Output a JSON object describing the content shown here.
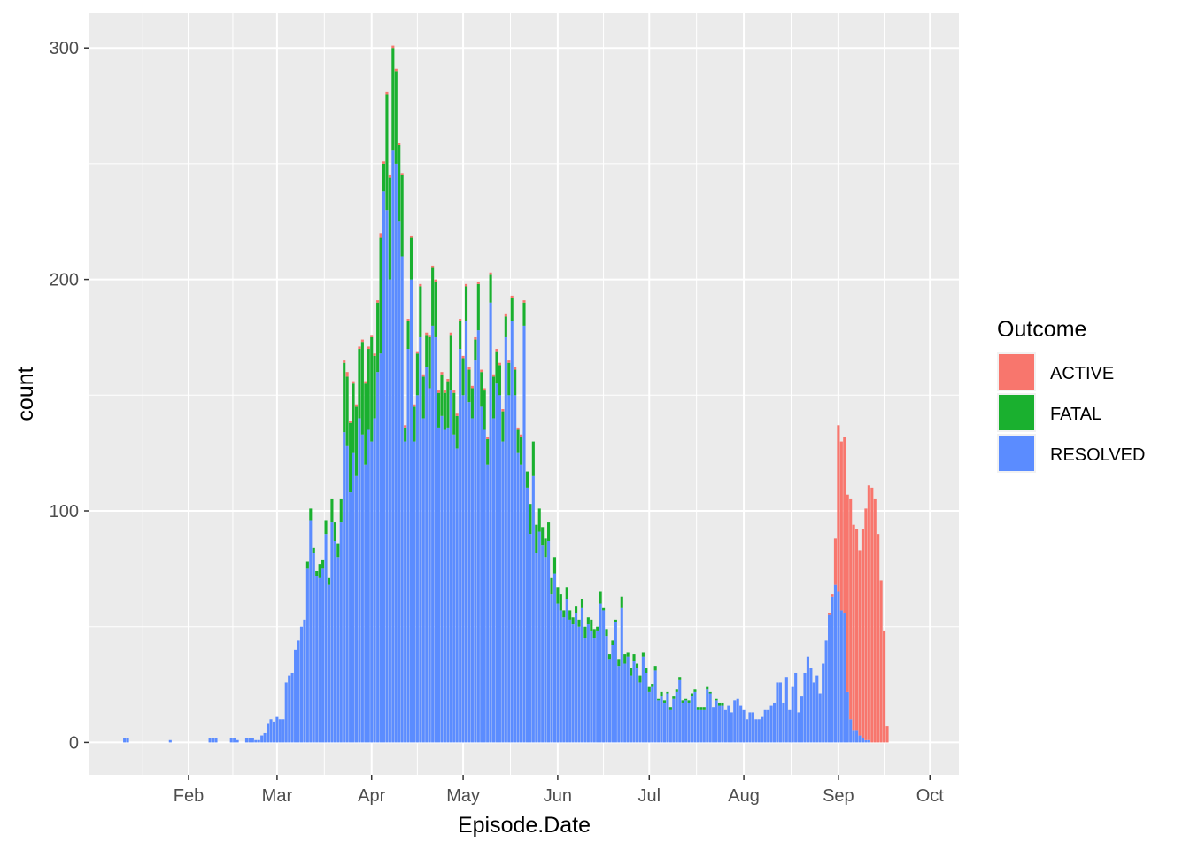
{
  "chart_data": {
    "type": "bar",
    "stacked": true,
    "xlabel": "Episode.Date",
    "ylabel": "count",
    "x_ticks": [
      "Feb",
      "Mar",
      "Apr",
      "May",
      "Jun",
      "Jul",
      "Aug",
      "Sep",
      "Oct"
    ],
    "x_tick_days": [
      31,
      60,
      91,
      121,
      152,
      182,
      213,
      244,
      274
    ],
    "x_start_date": "2020-01-01",
    "xlim_days": [
      -1.5,
      283.5
    ],
    "y_ticks": [
      0,
      100,
      200,
      300
    ],
    "ylim": [
      -14,
      315
    ],
    "grid": true,
    "background": "#ebebeb",
    "legend": {
      "title": "Outcome",
      "position": "right",
      "entries": [
        "ACTIVE",
        "FATAL",
        "RESOLVED"
      ]
    },
    "colors": {
      "ACTIVE": "#f8766d",
      "FATAL": "#1ab02f",
      "RESOLVED": "#5b8cff"
    },
    "first_day": 10,
    "series": [
      {
        "name": "RESOLVED",
        "values": [
          2,
          2,
          0,
          0,
          0,
          0,
          0,
          0,
          0,
          0,
          0,
          0,
          0,
          0,
          0,
          1,
          0,
          0,
          0,
          0,
          0,
          0,
          0,
          0,
          0,
          0,
          0,
          0,
          2,
          2,
          2,
          0,
          0,
          0,
          0,
          2,
          2,
          1,
          0,
          0,
          2,
          2,
          2,
          1,
          1,
          3,
          4,
          8,
          10,
          9,
          11,
          10,
          10,
          26,
          29,
          30,
          40,
          44,
          50,
          53,
          75,
          96,
          82,
          72,
          71,
          75,
          90,
          68,
          95,
          87,
          80,
          95,
          134,
          128,
          108,
          125,
          115,
          140,
          133,
          120,
          135,
          130,
          140,
          160,
          168,
          238,
          230,
          200,
          256,
          250,
          225,
          210,
          130,
          170,
          200,
          130,
          150,
          175,
          140,
          162,
          153,
          180,
          175,
          136,
          141,
          135,
          136,
          152,
          133,
          127,
          170,
          150,
          182,
          147,
          140,
          165,
          178,
          145,
          135,
          120,
          190,
          140,
          155,
          150,
          130,
          175,
          150,
          182,
          150,
          125,
          120,
          180,
          110,
          90,
          115,
          82,
          91,
          85,
          80,
          87,
          64,
          73,
          60,
          57,
          54,
          62,
          53,
          51,
          56,
          50,
          58,
          45,
          51,
          48,
          45,
          48,
          60,
          57,
          46,
          36,
          42,
          52,
          33,
          58,
          34,
          37,
          29,
          35,
          32,
          26,
          37,
          30,
          22,
          24,
          31,
          18,
          20,
          17,
          21,
          14,
          19,
          22,
          27,
          17,
          18,
          17,
          20,
          22,
          14,
          14,
          14,
          23,
          21,
          15,
          18,
          16,
          16,
          14,
          16,
          13,
          18,
          19,
          16,
          14,
          10,
          13,
          13,
          10,
          10,
          11,
          14,
          14,
          16,
          17,
          26,
          26,
          17,
          28,
          14,
          24,
          30,
          13,
          20,
          30,
          37,
          32,
          26,
          29,
          21,
          34,
          44,
          55,
          63,
          68,
          65,
          57,
          56,
          22,
          10,
          5,
          5,
          3,
          2,
          1,
          1,
          0,
          0,
          0,
          0,
          0,
          0,
          0,
          0,
          0
        ]
      },
      {
        "name": "FATAL",
        "values": [
          0,
          0,
          0,
          0,
          0,
          0,
          0,
          0,
          0,
          0,
          0,
          0,
          0,
          0,
          0,
          0,
          0,
          0,
          0,
          0,
          0,
          0,
          0,
          0,
          0,
          0,
          0,
          0,
          0,
          0,
          0,
          0,
          0,
          0,
          0,
          0,
          0,
          0,
          0,
          0,
          0,
          0,
          0,
          0,
          0,
          0,
          0,
          0,
          0,
          0,
          0,
          0,
          0,
          0,
          0,
          0,
          0,
          0,
          0,
          0,
          3,
          5,
          2,
          2,
          6,
          4,
          6,
          3,
          10,
          8,
          6,
          10,
          30,
          30,
          30,
          30,
          30,
          30,
          40,
          35,
          35,
          45,
          27,
          30,
          50,
          12,
          50,
          44,
          44,
          40,
          33,
          35,
          6,
          12,
          18,
          15,
          18,
          22,
          18,
          14,
          22,
          25,
          24,
          15,
          18,
          16,
          20,
          24,
          18,
          14,
          12,
          16,
          15,
          14,
          13,
          9,
          20,
          15,
          17,
          11,
          12,
          18,
          14,
          13,
          13,
          9,
          14,
          10,
          11,
          10,
          12,
          10,
          7,
          13,
          15,
          12,
          10,
          8,
          8,
          8,
          7,
          7,
          7,
          7,
          3,
          5,
          4,
          3,
          3,
          3,
          4,
          5,
          3,
          5,
          4,
          2,
          5,
          1,
          3,
          2,
          2,
          1,
          3,
          5,
          4,
          2,
          3,
          3,
          2,
          3,
          2,
          2,
          2,
          1,
          2,
          1,
          2,
          1,
          1,
          1,
          1,
          1,
          1,
          1,
          1,
          1,
          1,
          1,
          1,
          1,
          1,
          1,
          1,
          0,
          1,
          1,
          1,
          0,
          0,
          0,
          0,
          0,
          0,
          0,
          0,
          0,
          0,
          0,
          0,
          0,
          0,
          0,
          0,
          0,
          0,
          0,
          0,
          0,
          0,
          0,
          0,
          0,
          0,
          0,
          0,
          0,
          0,
          0,
          0,
          0,
          0,
          0,
          0,
          0,
          0,
          0,
          0,
          0,
          0,
          0,
          0,
          0,
          0,
          0,
          0,
          0,
          0,
          0,
          0,
          0,
          0,
          0,
          0,
          0
        ]
      },
      {
        "name": "ACTIVE",
        "values": [
          0,
          0,
          0,
          0,
          0,
          0,
          0,
          0,
          0,
          0,
          0,
          0,
          0,
          0,
          0,
          0,
          0,
          0,
          0,
          0,
          0,
          0,
          0,
          0,
          0,
          0,
          0,
          0,
          0,
          0,
          0,
          0,
          0,
          0,
          0,
          0,
          0,
          0,
          0,
          0,
          0,
          0,
          0,
          0,
          0,
          0,
          0,
          0,
          0,
          0,
          0,
          0,
          0,
          0,
          0,
          0,
          0,
          0,
          0,
          0,
          0,
          0,
          0,
          0,
          0,
          0,
          0,
          0,
          0,
          0,
          0,
          0,
          1,
          2,
          1,
          1,
          1,
          1,
          1,
          1,
          1,
          1,
          1,
          1,
          2,
          1,
          1,
          1,
          1,
          1,
          1,
          1,
          1,
          1,
          1,
          1,
          1,
          1,
          1,
          1,
          1,
          1,
          1,
          1,
          1,
          1,
          1,
          1,
          1,
          1,
          1,
          1,
          1,
          1,
          1,
          1,
          1,
          1,
          1,
          1,
          1,
          1,
          1,
          1,
          1,
          1,
          1,
          1,
          1,
          1,
          1,
          1,
          0,
          0,
          0,
          0,
          0,
          0,
          0,
          0,
          0,
          0,
          0,
          0,
          0,
          0,
          0,
          0,
          0,
          0,
          0,
          0,
          0,
          0,
          0,
          0,
          0,
          0,
          0,
          0,
          0,
          0,
          0,
          0,
          0,
          0,
          0,
          0,
          0,
          0,
          0,
          0,
          0,
          0,
          0,
          0,
          0,
          0,
          0,
          0,
          0,
          0,
          0,
          0,
          0,
          0,
          0,
          0,
          0,
          0,
          0,
          0,
          0,
          0,
          0,
          0,
          0,
          0,
          0,
          0,
          0,
          0,
          0,
          0,
          0,
          0,
          0,
          0,
          0,
          0,
          0,
          0,
          0,
          0,
          0,
          0,
          0,
          0,
          0,
          0,
          0,
          0,
          0,
          0,
          0,
          0,
          0,
          0,
          0,
          0,
          0,
          1,
          1,
          20,
          72,
          73,
          76,
          85,
          95,
          89,
          87,
          80,
          90,
          100,
          110,
          110,
          105,
          90,
          70,
          48,
          7,
          0,
          0,
          0,
          0,
          0,
          0,
          0,
          0,
          0
        ]
      }
    ]
  }
}
